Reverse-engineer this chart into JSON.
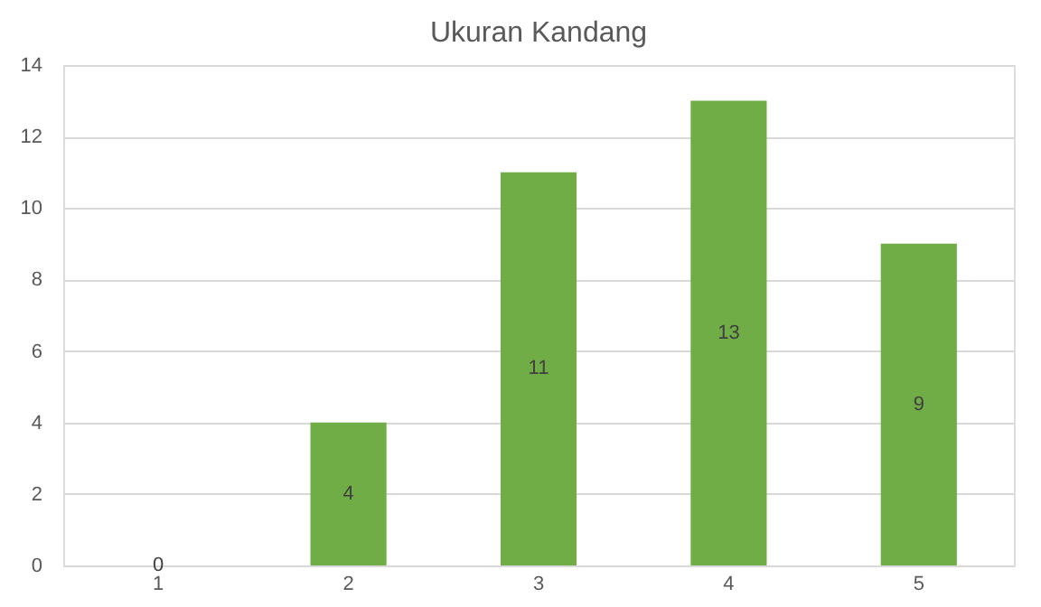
{
  "chart_data": {
    "type": "bar",
    "title": "Ukuran Kandang",
    "categories": [
      "1",
      "2",
      "3",
      "4",
      "5"
    ],
    "values": [
      0,
      4,
      11,
      13,
      9
    ],
    "color": "#70ad47",
    "ylim": [
      0,
      14
    ],
    "yticks": [
      0,
      2,
      4,
      6,
      8,
      10,
      12,
      14
    ],
    "grid": "y",
    "data_labels": true
  }
}
